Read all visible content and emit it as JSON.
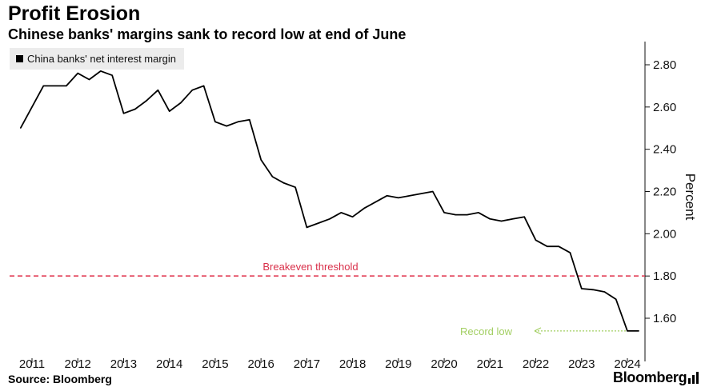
{
  "header": {
    "title": "Profit Erosion",
    "subtitle": "Chinese banks' margins sank to record low at end of June"
  },
  "footer": {
    "source": "Source: Bloomberg",
    "brand": "Bloomberg"
  },
  "colors": {
    "line": "#000000",
    "threshold": "#e0304a",
    "record_low": "#a3cf63",
    "legend_bg": "#ececec"
  },
  "chart_data": {
    "type": "line",
    "title": "Profit Erosion",
    "subtitle": "Chinese banks' margins sank to record low at end of June",
    "xlabel": "",
    "ylabel": "Percent",
    "y_axis_side": "right",
    "ylim": [
      1.5,
      2.85
    ],
    "y_ticks": [
      1.6,
      1.8,
      2.0,
      2.2,
      2.4,
      2.6,
      2.8
    ],
    "y_tick_labels": [
      "1.60",
      "1.80",
      "2.00",
      "2.20",
      "2.40",
      "2.60",
      "2.80"
    ],
    "xlim": [
      2010.8,
      2024.75
    ],
    "x_ticks": [
      2011,
      2012,
      2013,
      2014,
      2015,
      2016,
      2017,
      2018,
      2019,
      2020,
      2021,
      2022,
      2023,
      2024
    ],
    "x_tick_labels": [
      "2011",
      "2012",
      "2013",
      "2014",
      "2015",
      "2016",
      "2017",
      "2018",
      "2019",
      "2020",
      "2021",
      "2022",
      "2023",
      "2024"
    ],
    "grid": false,
    "legend": "top-left",
    "series": [
      {
        "name": "China banks' net interest margin",
        "x": [
          2010.75,
          2011.25,
          2011.5,
          2011.75,
          2012.0,
          2012.25,
          2012.5,
          2012.75,
          2013.0,
          2013.25,
          2013.5,
          2013.75,
          2014.0,
          2014.25,
          2014.5,
          2014.75,
          2015.0,
          2015.25,
          2015.5,
          2015.75,
          2016.0,
          2016.25,
          2016.5,
          2016.75,
          2017.0,
          2017.25,
          2017.5,
          2017.75,
          2018.0,
          2018.25,
          2018.5,
          2018.75,
          2019.0,
          2019.25,
          2019.5,
          2019.75,
          2020.0,
          2020.25,
          2020.5,
          2020.75,
          2021.0,
          2021.25,
          2021.5,
          2021.75,
          2022.0,
          2022.25,
          2022.5,
          2022.75,
          2023.0,
          2023.25,
          2023.5,
          2023.75,
          2024.0,
          2024.25
        ],
        "y": [
          2.5,
          2.7,
          2.7,
          2.7,
          2.76,
          2.73,
          2.77,
          2.75,
          2.57,
          2.59,
          2.63,
          2.68,
          2.58,
          2.62,
          2.68,
          2.7,
          2.53,
          2.51,
          2.53,
          2.54,
          2.35,
          2.27,
          2.24,
          2.22,
          2.03,
          2.05,
          2.07,
          2.1,
          2.08,
          2.12,
          2.15,
          2.18,
          2.17,
          2.18,
          2.19,
          2.2,
          2.1,
          2.09,
          2.09,
          2.1,
          2.07,
          2.06,
          2.07,
          2.08,
          1.97,
          1.94,
          1.94,
          1.91,
          1.74,
          1.735,
          1.725,
          1.69,
          1.54,
          1.54
        ]
      }
    ],
    "annotations": {
      "threshold": {
        "label": "Breakeven threshold",
        "value": 1.8
      },
      "record_low": {
        "label": "Record low",
        "value": 1.54
      }
    }
  }
}
